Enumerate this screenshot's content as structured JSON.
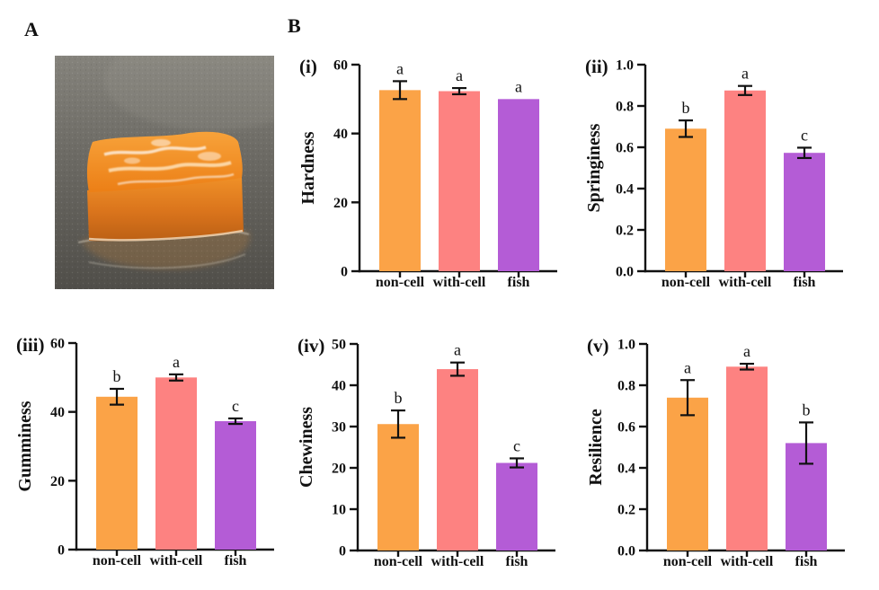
{
  "panels": {
    "a_label": "A",
    "b_label": "B"
  },
  "photo": {
    "subject": "orange 3D-printed gel cube sample on dark grey surface"
  },
  "palette": {
    "bars": [
      "#FBA347",
      "#FD8281",
      "#B45CD6"
    ],
    "axis": "#111111",
    "background": "#FFFFFF"
  },
  "categories": [
    "non-cell",
    "with-cell",
    "fish"
  ],
  "chart_data": [
    {
      "type": "bar",
      "sub_label": "(i)",
      "ylabel": "Hardness",
      "ylim": [
        0,
        60
      ],
      "yticks": [
        0,
        20,
        40,
        60
      ],
      "ytick_labels": [
        "0",
        "20",
        "40",
        "60"
      ],
      "categories": [
        "non-cell",
        "with-cell",
        "fish"
      ],
      "values": [
        52.6,
        52.3,
        50.0
      ],
      "errors": [
        2.6,
        0.9,
        0
      ],
      "sig_letters": [
        "a",
        "a",
        "a"
      ]
    },
    {
      "type": "bar",
      "sub_label": "(ii)",
      "ylabel": "Springiness",
      "ylim": [
        0,
        1.0
      ],
      "yticks": [
        0,
        0.2,
        0.4,
        0.6,
        0.8,
        1.0
      ],
      "ytick_labels": [
        "0.0",
        "0.2",
        "0.4",
        "0.6",
        "0.8",
        "1.0"
      ],
      "categories": [
        "non-cell",
        "with-cell",
        "fish"
      ],
      "values": [
        0.69,
        0.875,
        0.573
      ],
      "errors": [
        0.04,
        0.022,
        0.025
      ],
      "sig_letters": [
        "b",
        "a",
        "c"
      ]
    },
    {
      "type": "bar",
      "sub_label": "(iii)",
      "ylabel": "Gumminess",
      "ylim": [
        0,
        60
      ],
      "yticks": [
        0,
        20,
        40,
        60
      ],
      "ytick_labels": [
        "0",
        "20",
        "40",
        "60"
      ],
      "categories": [
        "non-cell",
        "with-cell",
        "fish"
      ],
      "values": [
        44.4,
        50.0,
        37.3
      ],
      "errors": [
        2.3,
        0.9,
        0.8
      ],
      "sig_letters": [
        "b",
        "a",
        "c"
      ]
    },
    {
      "type": "bar",
      "sub_label": "(iv)",
      "ylabel": "Chewiness",
      "ylim": [
        0,
        50
      ],
      "yticks": [
        0,
        10,
        20,
        30,
        40,
        50
      ],
      "ytick_labels": [
        "0",
        "10",
        "20",
        "30",
        "40",
        "50"
      ],
      "categories": [
        "non-cell",
        "with-cell",
        "fish"
      ],
      "values": [
        30.6,
        43.9,
        21.2
      ],
      "errors": [
        3.3,
        1.6,
        1.1
      ],
      "sig_letters": [
        "b",
        "a",
        "c"
      ]
    },
    {
      "type": "bar",
      "sub_label": "(v)",
      "ylabel": "Resilience",
      "ylim": [
        0,
        1.0
      ],
      "yticks": [
        0,
        0.2,
        0.4,
        0.6,
        0.8,
        1.0
      ],
      "ytick_labels": [
        "0.0",
        "0.2",
        "0.4",
        "0.6",
        "0.8",
        "1.0"
      ],
      "categories": [
        "non-cell",
        "with-cell",
        "fish"
      ],
      "values": [
        0.74,
        0.89,
        0.52
      ],
      "errors": [
        0.085,
        0.014,
        0.1
      ],
      "sig_letters": [
        "a",
        "a",
        "b"
      ]
    }
  ]
}
